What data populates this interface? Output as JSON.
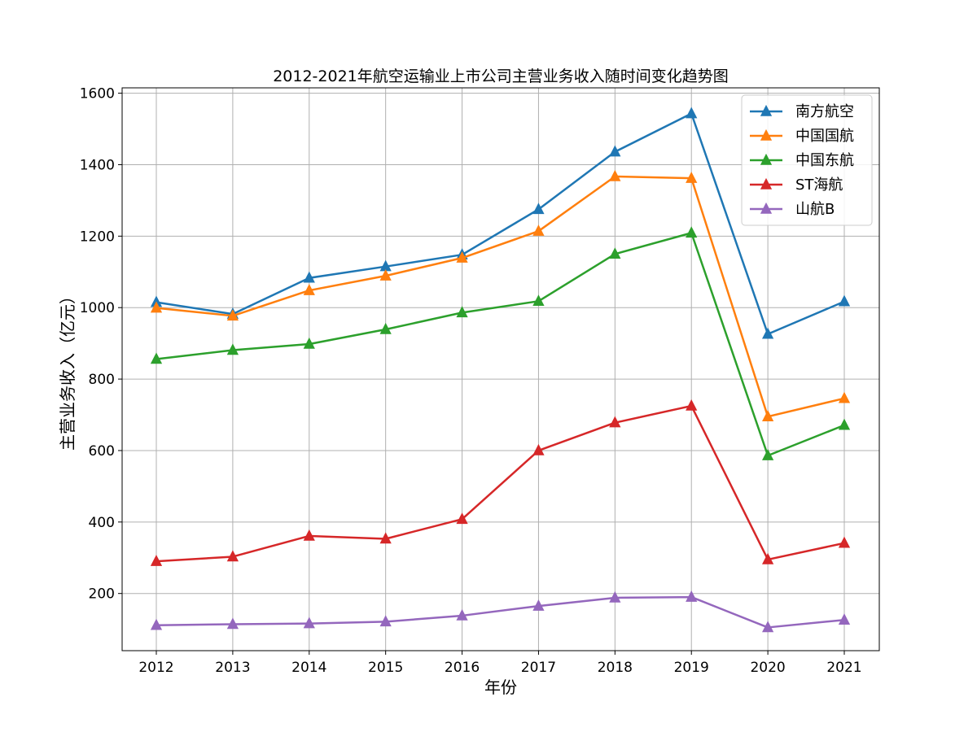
{
  "chart_data": {
    "type": "line",
    "title": "2012-2021年航空运输业上市公司主营业务收入随时间变化趋势图",
    "xlabel": "年份",
    "ylabel": "主营业务收入（亿元）",
    "x": [
      "2012",
      "2013",
      "2014",
      "2015",
      "2016",
      "2017",
      "2018",
      "2019",
      "2020",
      "2021"
    ],
    "ylim": [
      40,
      1615
    ],
    "yticks": [
      200,
      400,
      600,
      800,
      1000,
      1200,
      1400,
      1600
    ],
    "grid": true,
    "legend_position": "top-right",
    "marker": "triangle",
    "series": [
      {
        "name": "南方航空",
        "color": "#1f77b4",
        "values": [
          1015,
          982,
          1083,
          1115,
          1148,
          1275,
          1436,
          1543,
          926,
          1017
        ]
      },
      {
        "name": "中国国航",
        "color": "#ff7f0e",
        "values": [
          999,
          977,
          1048,
          1089,
          1139,
          1214,
          1367,
          1362,
          695,
          746
        ]
      },
      {
        "name": "中国东航",
        "color": "#2ca02c",
        "values": [
          856,
          881,
          898,
          939,
          986,
          1018,
          1150,
          1209,
          586,
          671
        ]
      },
      {
        "name": "ST海航",
        "color": "#d62728",
        "values": [
          290,
          303,
          361,
          353,
          408,
          600,
          678,
          725,
          295,
          341
        ]
      },
      {
        "name": "山航B",
        "color": "#9467bd",
        "values": [
          111,
          114,
          116,
          121,
          138,
          165,
          188,
          190,
          105,
          126
        ]
      }
    ]
  }
}
